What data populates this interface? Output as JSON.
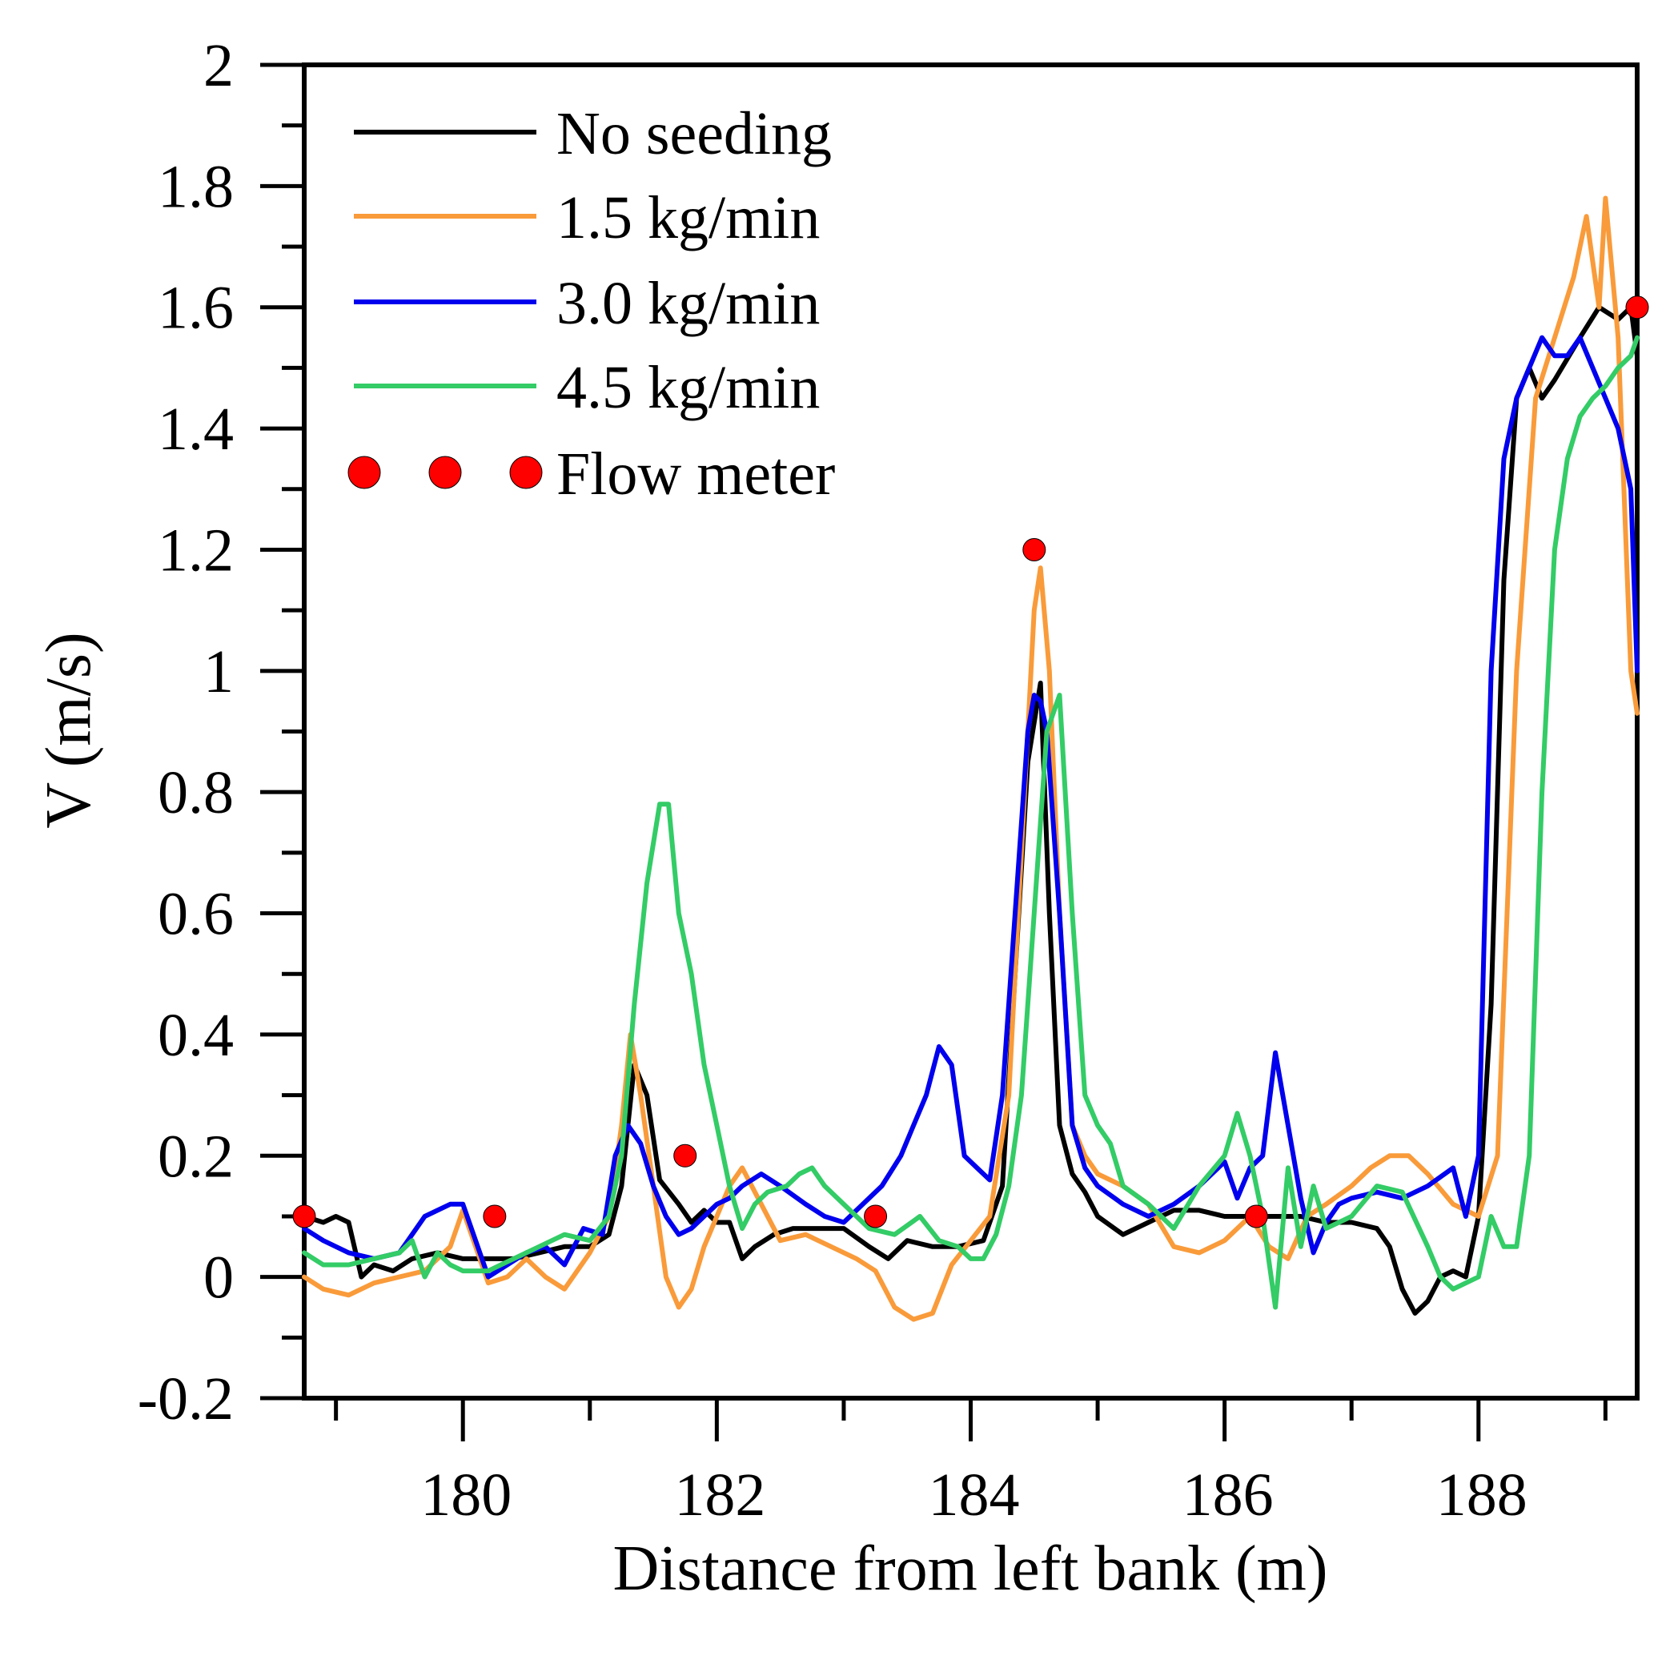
{
  "chart_data": {
    "type": "line",
    "title": "",
    "xlabel": "Distance from left bank (m)",
    "ylabel": "V (m/s)",
    "xlim": [
      178.75,
      189.25
    ],
    "ylim": [
      -0.2,
      2.0
    ],
    "x_ticks": [
      180,
      182,
      184,
      186,
      188
    ],
    "x_tick_labels": [
      "180",
      "182",
      "184",
      "186",
      "188"
    ],
    "y_ticks": [
      -0.2,
      0,
      0.2,
      0.4,
      0.6,
      0.8,
      1.0,
      1.2,
      1.4,
      1.6,
      1.8,
      2.0
    ],
    "y_tick_labels": [
      "-0.2",
      "0",
      "0.2",
      "0.4",
      "0.6",
      "0.8",
      "1",
      "1.2",
      "1.4",
      "1.6",
      "1.8",
      "2"
    ],
    "grid": false,
    "legend_position": "top-left",
    "series": [
      {
        "name": "No seeding",
        "color": "#000000",
        "x": [
          178.75,
          178.9,
          179.0,
          179.1,
          179.2,
          179.3,
          179.45,
          179.6,
          179.8,
          180.0,
          180.2,
          180.4,
          180.6,
          180.8,
          181.0,
          181.15,
          181.25,
          181.35,
          181.45,
          181.55,
          181.7,
          181.8,
          181.9,
          182.0,
          182.1,
          182.2,
          182.3,
          182.45,
          182.6,
          182.8,
          183.0,
          183.2,
          183.35,
          183.5,
          183.7,
          183.9,
          184.1,
          184.25,
          184.35,
          184.45,
          184.55,
          184.62,
          184.7,
          184.8,
          184.9,
          185.0,
          185.2,
          185.4,
          185.6,
          185.8,
          186.0,
          186.2,
          186.4,
          186.6,
          186.8,
          187.0,
          187.2,
          187.3,
          187.4,
          187.5,
          187.6,
          187.7,
          187.8,
          187.9,
          188.0,
          188.1,
          188.2,
          188.3,
          188.4,
          188.5,
          188.6,
          188.8,
          188.95,
          189.1,
          189.2,
          189.25
        ],
        "values": [
          0.1,
          0.09,
          0.1,
          0.09,
          0.0,
          0.02,
          0.01,
          0.03,
          0.04,
          0.03,
          0.03,
          0.03,
          0.04,
          0.05,
          0.05,
          0.07,
          0.15,
          0.35,
          0.3,
          0.16,
          0.12,
          0.09,
          0.11,
          0.09,
          0.09,
          0.03,
          0.05,
          0.07,
          0.08,
          0.08,
          0.08,
          0.05,
          0.03,
          0.06,
          0.05,
          0.05,
          0.06,
          0.15,
          0.5,
          0.85,
          0.98,
          0.6,
          0.25,
          0.17,
          0.14,
          0.1,
          0.07,
          0.09,
          0.11,
          0.11,
          0.1,
          0.1,
          0.1,
          0.1,
          0.09,
          0.09,
          0.08,
          0.05,
          -0.02,
          -0.06,
          -0.04,
          0.0,
          0.01,
          0.0,
          0.1,
          0.45,
          1.15,
          1.45,
          1.5,
          1.45,
          1.48,
          1.55,
          1.6,
          1.58,
          1.6,
          1.52
        ]
      },
      {
        "name": "1.5 kg/min",
        "color": "#F99B3A",
        "x": [
          178.75,
          178.9,
          179.1,
          179.3,
          179.5,
          179.7,
          179.9,
          180.0,
          180.1,
          180.2,
          180.35,
          180.5,
          180.65,
          180.8,
          181.0,
          181.15,
          181.25,
          181.32,
          181.4,
          181.5,
          181.6,
          181.7,
          181.8,
          181.9,
          182.0,
          182.1,
          182.2,
          182.35,
          182.5,
          182.7,
          182.9,
          183.1,
          183.25,
          183.4,
          183.55,
          183.7,
          183.85,
          184.0,
          184.15,
          184.3,
          184.4,
          184.5,
          184.55,
          184.62,
          184.7,
          184.8,
          184.9,
          185.0,
          185.2,
          185.4,
          185.6,
          185.8,
          186.0,
          186.2,
          186.35,
          186.5,
          186.65,
          186.8,
          187.0,
          187.15,
          187.3,
          187.45,
          187.6,
          187.8,
          188.0,
          188.15,
          188.3,
          188.45,
          188.6,
          188.75,
          188.85,
          188.95,
          189.0,
          189.1,
          189.2,
          189.25
        ],
        "values": [
          0.0,
          -0.02,
          -0.03,
          -0.01,
          0.0,
          0.01,
          0.05,
          0.11,
          0.05,
          -0.01,
          0.0,
          0.03,
          0.0,
          -0.02,
          0.04,
          0.1,
          0.25,
          0.4,
          0.3,
          0.15,
          0.0,
          -0.05,
          -0.02,
          0.05,
          0.1,
          0.15,
          0.18,
          0.12,
          0.06,
          0.07,
          0.05,
          0.03,
          0.01,
          -0.05,
          -0.07,
          -0.06,
          0.02,
          0.06,
          0.1,
          0.3,
          0.7,
          1.1,
          1.17,
          1.0,
          0.6,
          0.25,
          0.2,
          0.17,
          0.15,
          0.12,
          0.05,
          0.04,
          0.06,
          0.1,
          0.05,
          0.03,
          0.1,
          0.12,
          0.15,
          0.18,
          0.2,
          0.2,
          0.17,
          0.12,
          0.1,
          0.2,
          1.0,
          1.45,
          1.55,
          1.65,
          1.75,
          1.6,
          1.78,
          1.55,
          1.0,
          0.93
        ]
      },
      {
        "name": "3.0 kg/min",
        "color": "#0000EE",
        "x": [
          178.75,
          178.9,
          179.1,
          179.3,
          179.5,
          179.7,
          179.9,
          180.0,
          180.1,
          180.2,
          180.35,
          180.5,
          180.65,
          180.8,
          180.95,
          181.1,
          181.2,
          181.3,
          181.4,
          181.5,
          181.6,
          181.7,
          181.8,
          181.9,
          182.0,
          182.1,
          182.2,
          182.35,
          182.5,
          182.7,
          182.85,
          183.0,
          183.15,
          183.3,
          183.45,
          183.55,
          183.65,
          183.75,
          183.85,
          183.95,
          184.05,
          184.15,
          184.25,
          184.35,
          184.45,
          184.5,
          184.55,
          184.6,
          184.7,
          184.8,
          184.9,
          185.0,
          185.2,
          185.4,
          185.6,
          185.8,
          186.0,
          186.1,
          186.2,
          186.3,
          186.4,
          186.5,
          186.6,
          186.7,
          186.8,
          186.9,
          187.0,
          187.2,
          187.4,
          187.6,
          187.8,
          187.9,
          188.0,
          188.1,
          188.2,
          188.3,
          188.4,
          188.5,
          188.6,
          188.7,
          188.8,
          188.9,
          189.0,
          189.1,
          189.2,
          189.25
        ],
        "values": [
          0.08,
          0.06,
          0.04,
          0.03,
          0.04,
          0.1,
          0.12,
          0.12,
          0.06,
          0.0,
          0.02,
          0.04,
          0.05,
          0.02,
          0.08,
          0.07,
          0.2,
          0.25,
          0.22,
          0.15,
          0.1,
          0.07,
          0.08,
          0.1,
          0.12,
          0.13,
          0.15,
          0.17,
          0.15,
          0.12,
          0.1,
          0.09,
          0.12,
          0.15,
          0.2,
          0.25,
          0.3,
          0.38,
          0.35,
          0.2,
          0.18,
          0.16,
          0.3,
          0.6,
          0.9,
          0.96,
          0.95,
          0.9,
          0.6,
          0.25,
          0.18,
          0.15,
          0.12,
          0.1,
          0.12,
          0.15,
          0.19,
          0.13,
          0.18,
          0.2,
          0.37,
          0.25,
          0.13,
          0.04,
          0.09,
          0.12,
          0.13,
          0.14,
          0.13,
          0.15,
          0.18,
          0.1,
          0.2,
          1.0,
          1.35,
          1.45,
          1.5,
          1.55,
          1.52,
          1.52,
          1.55,
          1.5,
          1.45,
          1.4,
          1.3,
          1.0
        ]
      },
      {
        "name": "4.5 kg/min",
        "color": "#33CC66",
        "x": [
          178.75,
          178.9,
          179.1,
          179.3,
          179.5,
          179.6,
          179.7,
          179.8,
          179.9,
          180.0,
          180.2,
          180.4,
          180.6,
          180.8,
          181.0,
          181.15,
          181.25,
          181.35,
          181.45,
          181.55,
          181.62,
          181.7,
          181.8,
          181.9,
          182.0,
          182.1,
          182.2,
          182.3,
          182.4,
          182.55,
          182.65,
          182.75,
          182.85,
          183.0,
          183.2,
          183.4,
          183.6,
          183.75,
          183.9,
          184.0,
          184.1,
          184.2,
          184.3,
          184.4,
          184.5,
          184.6,
          184.7,
          184.8,
          184.9,
          185.0,
          185.1,
          185.2,
          185.4,
          185.6,
          185.8,
          186.0,
          186.1,
          186.2,
          186.3,
          186.4,
          186.5,
          186.6,
          186.7,
          186.8,
          187.0,
          187.2,
          187.4,
          187.6,
          187.7,
          187.8,
          188.0,
          188.1,
          188.2,
          188.3,
          188.4,
          188.5,
          188.6,
          188.7,
          188.8,
          188.9,
          189.0,
          189.1,
          189.2,
          189.25
        ],
        "values": [
          0.04,
          0.02,
          0.02,
          0.03,
          0.04,
          0.06,
          0.0,
          0.04,
          0.02,
          0.01,
          0.01,
          0.03,
          0.05,
          0.07,
          0.06,
          0.1,
          0.2,
          0.45,
          0.65,
          0.78,
          0.78,
          0.6,
          0.5,
          0.35,
          0.25,
          0.15,
          0.08,
          0.12,
          0.14,
          0.15,
          0.17,
          0.18,
          0.15,
          0.12,
          0.08,
          0.07,
          0.1,
          0.06,
          0.05,
          0.03,
          0.03,
          0.07,
          0.15,
          0.3,
          0.6,
          0.9,
          0.96,
          0.6,
          0.3,
          0.25,
          0.22,
          0.15,
          0.12,
          0.08,
          0.15,
          0.2,
          0.27,
          0.2,
          0.1,
          -0.05,
          0.18,
          0.05,
          0.15,
          0.08,
          0.1,
          0.15,
          0.14,
          0.05,
          0.0,
          -0.02,
          0.0,
          0.1,
          0.05,
          0.05,
          0.2,
          0.8,
          1.2,
          1.35,
          1.42,
          1.45,
          1.47,
          1.5,
          1.52,
          1.55
        ]
      },
      {
        "name": "Flow meter",
        "color": "#FF0000",
        "marker": "circle",
        "line": "none",
        "x": [
          178.75,
          180.25,
          181.75,
          183.25,
          184.5,
          186.25,
          189.25
        ],
        "values": [
          0.1,
          0.1,
          0.2,
          0.1,
          1.2,
          0.1,
          1.6
        ]
      }
    ]
  }
}
